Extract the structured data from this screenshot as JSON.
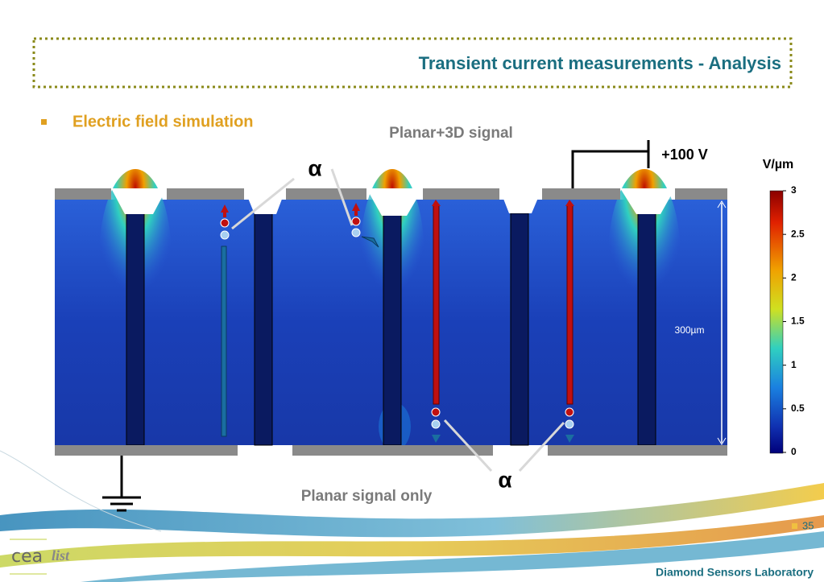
{
  "header": {
    "title": "Transient current measurements - Analysis"
  },
  "bullet": "Electric field simulation",
  "figure": {
    "top_label": "Planar+3D signal",
    "bias": "+100 V",
    "alpha_top": "α",
    "alpha_bottom": "α",
    "thickness": "300µm",
    "bottom_label": "Planar signal only",
    "colorbar": {
      "unit": "V/µm",
      "labels": [
        "3",
        "2.5",
        "2",
        "1.5",
        "1",
        "0.5",
        "0"
      ]
    }
  },
  "footer": {
    "page": "35",
    "lab": "Diamond Sensors Laboratory",
    "logo_cea": "cea",
    "logo_list": "list"
  }
}
